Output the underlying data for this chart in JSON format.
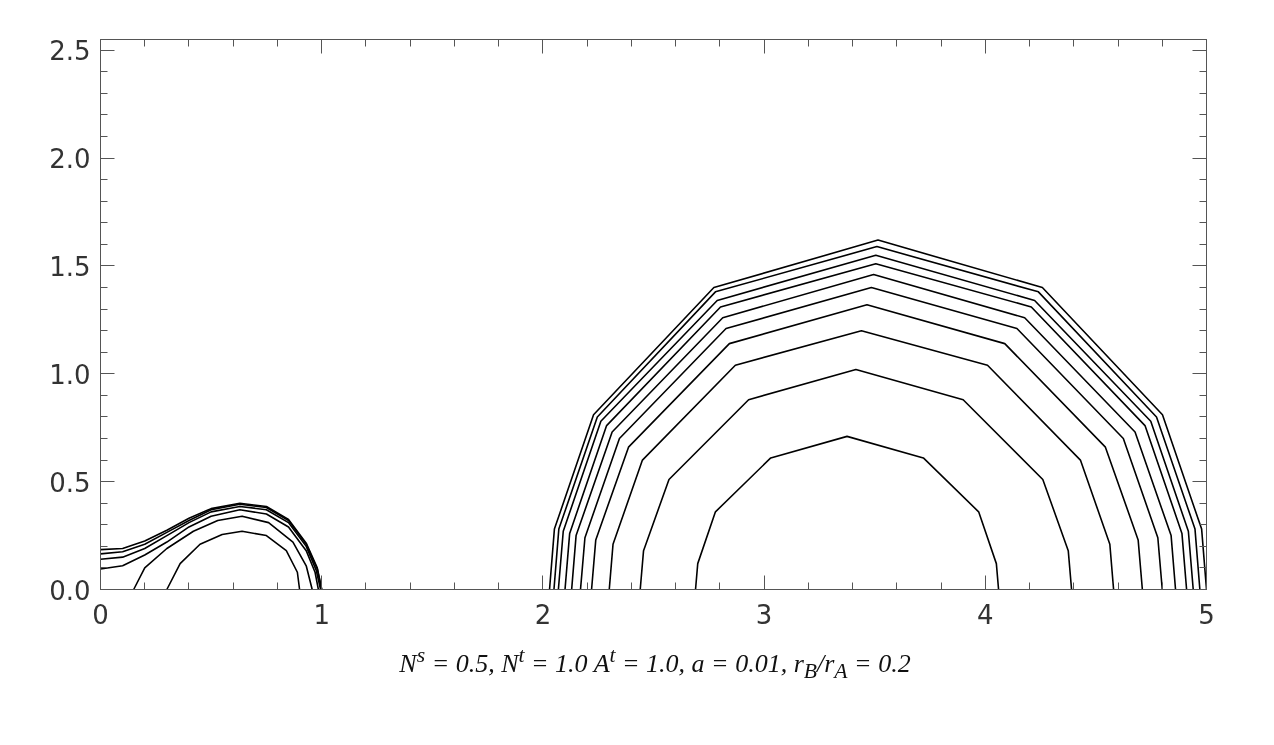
{
  "chart_data": {
    "type": "line",
    "xlabel": "N$^{s}$ = 0.5, N$^{t}$ = 1.0 A$^{t}$ = 1.0, a = 0.01, r$_{B}$/r$_{A}$ = 0.2",
    "xlim": [
      0,
      5
    ],
    "xticks": [
      0,
      1,
      2,
      3,
      4,
      5
    ],
    "ylim": [
      0,
      2.55
    ],
    "yticks": [
      {
        "value": 0,
        "label": "0.0"
      },
      0.5,
      {
        "value": 1,
        "label": "1.0"
      },
      1.5,
      {
        "value": 2,
        "label": "2.0"
      },
      2.5
    ],
    "series": [
      {
        "color": "#000000",
        "x": [
          0.3,
          0.36,
          0.45,
          0.55,
          0.64,
          0.75,
          0.84,
          0.89,
          0.9
        ],
        "values": [
          0,
          0.12,
          0.21,
          0.255,
          0.27,
          0.25,
          0.18,
          0.08,
          0
        ]
      },
      {
        "color": "#000000",
        "x": [
          0.15,
          0.2,
          0.3,
          0.42,
          0.53,
          0.64,
          0.76,
          0.87,
          0.93,
          0.957
        ],
        "values": [
          0,
          0.1,
          0.19,
          0.27,
          0.32,
          0.34,
          0.31,
          0.22,
          0.11,
          0
        ]
      },
      {
        "color": "#000000",
        "x": [
          0,
          0.1,
          0.2,
          0.3,
          0.4,
          0.5,
          0.63,
          0.75,
          0.85,
          0.93,
          0.97,
          0.985
        ],
        "values": [
          0.095,
          0.11,
          0.16,
          0.22,
          0.29,
          0.34,
          0.37,
          0.35,
          0.29,
          0.18,
          0.08,
          0
        ]
      },
      {
        "color": "#000000",
        "x": [
          0,
          0.1,
          0.2,
          0.3,
          0.4,
          0.5,
          0.63,
          0.75,
          0.85,
          0.93,
          0.975,
          0.995
        ],
        "values": [
          0.14,
          0.15,
          0.19,
          0.25,
          0.31,
          0.36,
          0.385,
          0.37,
          0.31,
          0.2,
          0.09,
          0
        ]
      },
      {
        "color": "#000000",
        "x": [
          0,
          0.1,
          0.2,
          0.3,
          0.4,
          0.5,
          0.63,
          0.75,
          0.85,
          0.93,
          0.98,
          1.0
        ],
        "values": [
          0.165,
          0.175,
          0.21,
          0.265,
          0.32,
          0.37,
          0.395,
          0.38,
          0.32,
          0.21,
          0.095,
          0
        ]
      },
      {
        "color": "#000000",
        "x": [
          0,
          0.1,
          0.2,
          0.3,
          0.4,
          0.5,
          0.63,
          0.75,
          0.85,
          0.93,
          0.98,
          1.0
        ],
        "values": [
          0.185,
          0.19,
          0.225,
          0.275,
          0.33,
          0.375,
          0.4,
          0.385,
          0.325,
          0.215,
          0.1,
          0
        ]
      },
      {
        "color": "#000000",
        "x": [
          2.69,
          2.7,
          2.78,
          3.03,
          3.375,
          3.72,
          3.97,
          4.05,
          4.06
        ],
        "values": [
          0,
          0.12,
          0.36,
          0.61,
          0.71,
          0.61,
          0.36,
          0.12,
          0
        ]
      },
      {
        "color": "#000000",
        "x": [
          2.44,
          2.455,
          2.57,
          2.93,
          3.415,
          3.9,
          4.26,
          4.375,
          4.39
        ],
        "values": [
          0,
          0.18,
          0.51,
          0.88,
          1.02,
          0.88,
          0.51,
          0.18,
          0
        ]
      },
      {
        "color": "#000000",
        "x": [
          2.3,
          2.317,
          2.45,
          2.87,
          3.44,
          4.01,
          4.43,
          4.563,
          4.58
        ],
        "values": [
          0,
          0.21,
          0.6,
          1.04,
          1.2,
          1.04,
          0.6,
          0.21,
          0
        ]
      },
      {
        "color": "#000000",
        "x": [
          2.22,
          2.239,
          2.387,
          2.843,
          3.465,
          4.088,
          4.543,
          4.691,
          4.71
        ],
        "values": [
          0,
          0.23,
          0.66,
          1.14,
          1.32,
          1.14,
          0.66,
          0.23,
          0
        ]
      },
      {
        "color": "#000000",
        "x": [
          2.17,
          2.19,
          2.346,
          2.828,
          3.485,
          4.143,
          4.624,
          4.78,
          4.8
        ],
        "values": [
          0,
          0.24,
          0.7,
          1.21,
          1.4,
          1.21,
          0.7,
          0.24,
          0
        ]
      },
      {
        "color": "#000000",
        "x": [
          2.13,
          2.15,
          2.313,
          2.813,
          3.495,
          4.178,
          4.677,
          4.84,
          4.86
        ],
        "values": [
          0,
          0.25,
          0.73,
          1.26,
          1.46,
          1.26,
          0.73,
          0.25,
          0
        ]
      },
      {
        "color": "#000000",
        "x": [
          2.1,
          2.121,
          2.288,
          2.803,
          3.505,
          4.208,
          4.722,
          4.889,
          4.91
        ],
        "values": [
          0,
          0.26,
          0.76,
          1.31,
          1.51,
          1.31,
          0.76,
          0.26,
          0
        ]
      },
      {
        "color": "#000000",
        "x": [
          2.07,
          2.092,
          2.262,
          2.788,
          3.505,
          4.223,
          4.748,
          4.918,
          4.94
        ],
        "values": [
          0,
          0.27,
          0.78,
          1.34,
          1.55,
          1.34,
          0.78,
          0.27,
          0
        ]
      },
      {
        "color": "#000000",
        "x": [
          2.05,
          2.072,
          2.246,
          2.78,
          3.51,
          4.24,
          4.774,
          4.948,
          4.97
        ],
        "values": [
          0,
          0.28,
          0.8,
          1.38,
          1.59,
          1.38,
          0.8,
          0.28,
          0
        ]
      },
      {
        "color": "#000000",
        "x": [
          2.03,
          2.052,
          2.229,
          2.773,
          3.515,
          4.258,
          4.801,
          4.978,
          5.0
        ],
        "values": [
          0,
          0.28,
          0.81,
          1.4,
          1.62,
          1.4,
          0.81,
          0.28,
          0
        ]
      }
    ]
  }
}
